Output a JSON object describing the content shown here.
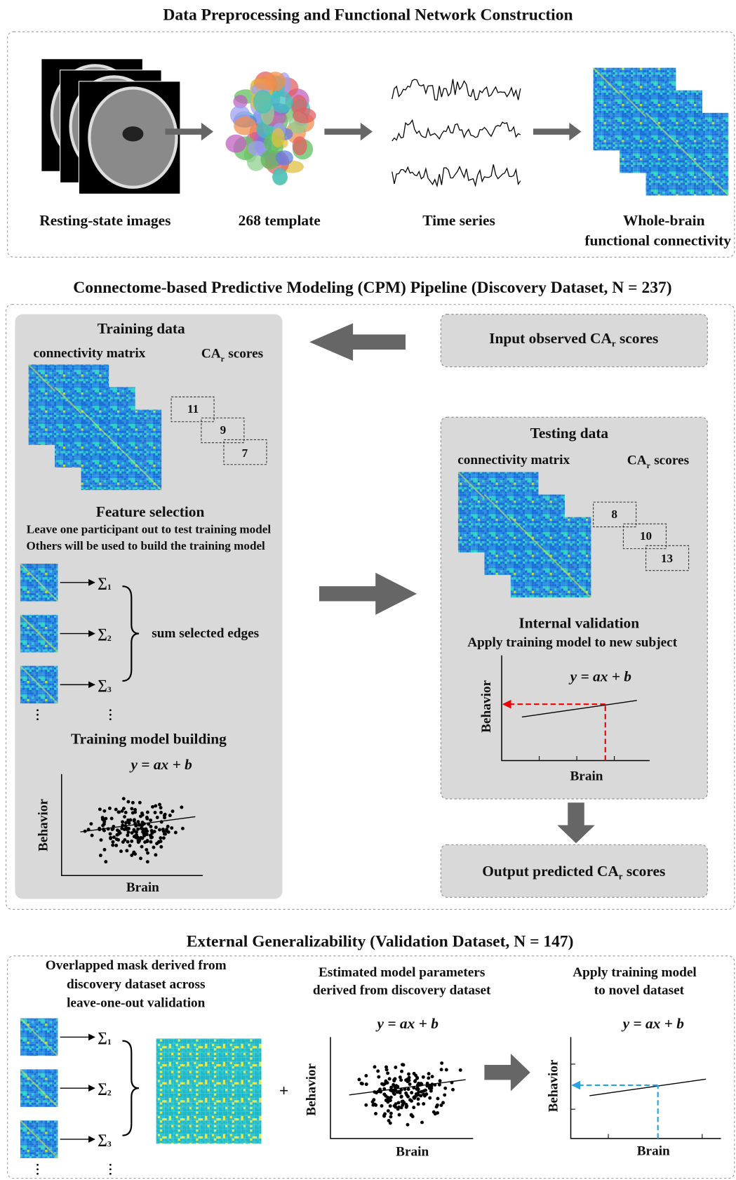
{
  "preprocessing": {
    "title": "Data Preprocessing and Functional Network Construction",
    "steps": [
      [
        "Resting-state images"
      ],
      [
        "268 template"
      ],
      [
        "Time series"
      ],
      [
        "Whole-brain",
        "functional connectivity"
      ]
    ]
  },
  "cpm": {
    "title": "Connectome-based Predictive Modeling (CPM) Pipeline (Discovery Dataset, N = 237)",
    "training": {
      "title": "Training data",
      "matrix_label": "connectivity matrix",
      "scores_label": {
        "pre": "CA",
        "sub": "r",
        "post": "scores"
      },
      "scores": [
        11,
        9,
        7
      ]
    },
    "feature_selection": {
      "title": "Feature selection",
      "lines": [
        "Leave one participant out to test training model",
        "Others will be used to build the training model"
      ],
      "sum_symbol": "∑",
      "sum_indices": [
        "1",
        "2",
        "3"
      ],
      "brace_label": "sum selected edges"
    },
    "model_building": {
      "title": "Training model building",
      "equation": "y = ax + b",
      "y_label": "Behavior",
      "x_label": "Brain"
    },
    "input": {
      "pre": "Input observed CA",
      "sub": "r",
      "post": "scores"
    },
    "testing": {
      "title": "Testing data",
      "matrix_label": "connectivity matrix",
      "scores_label": {
        "pre": "CA",
        "sub": "r",
        "post": "scores"
      },
      "scores": [
        8,
        10,
        13
      ]
    },
    "internal": {
      "title": "Internal validation",
      "subtitle": "Apply training model to new subject",
      "equation": "y = ax + b",
      "y_label": "Behavior",
      "x_label": "Brain"
    },
    "output": {
      "pre": "Output predicted CA",
      "sub": "r",
      "post": "scores"
    }
  },
  "external": {
    "title": "External Generalizability (Validation Dataset, N = 147)",
    "mask": {
      "lines": [
        "Overlapped mask derived from",
        "discovery dataset across",
        "leave-one-out validation"
      ],
      "sum_symbol": "∑",
      "sum_indices": [
        "1",
        "2",
        "3"
      ]
    },
    "plus": "+",
    "params": {
      "lines": [
        "Estimated model parameters",
        "derived from discovery dataset"
      ],
      "equation": "y = ax + b",
      "y_label": "Behavior",
      "x_label": "Brain"
    },
    "apply": {
      "lines": [
        "Apply training model",
        "to novel dataset"
      ],
      "equation": "y = ax + b",
      "y_label": "Behavior",
      "x_label": "Brain"
    }
  }
}
